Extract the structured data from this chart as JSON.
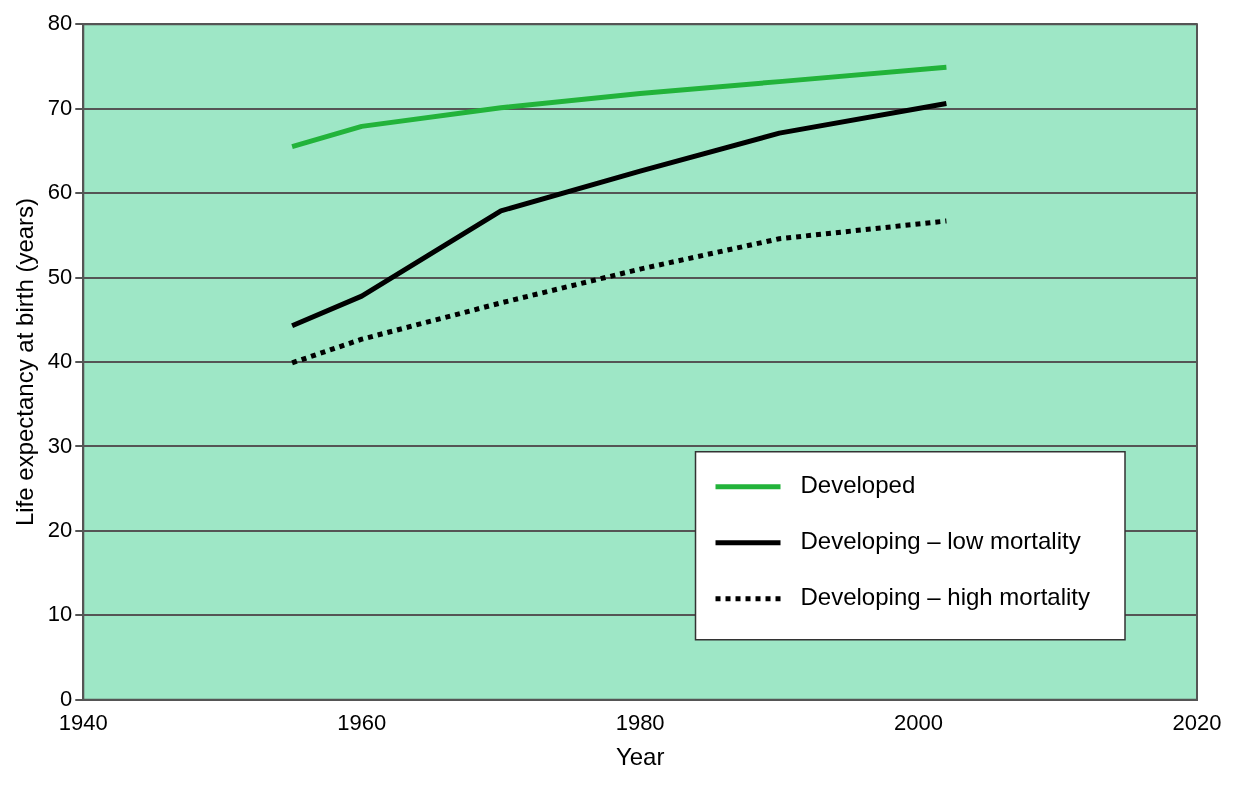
{
  "chart_data": {
    "type": "line",
    "xlabel": "Year",
    "ylabel": "Life expectancy at birth (years)",
    "x": [
      1955,
      1960,
      1970,
      1980,
      1990,
      2002
    ],
    "series": [
      {
        "name": "Developed",
        "color": "#22b33a",
        "values": [
          65.5,
          67.9,
          70.1,
          71.8,
          73.2,
          74.9
        ],
        "line_style": "solid"
      },
      {
        "name": "Developing – low mortality",
        "color": "#000000",
        "values": [
          44.3,
          47.8,
          57.9,
          62.6,
          67.1,
          70.6
        ],
        "line_style": "solid"
      },
      {
        "name": "Developing – high mortality",
        "color": "#000000",
        "values": [
          39.9,
          42.7,
          47,
          51,
          54.6,
          56.7
        ],
        "line_style": "dotted"
      }
    ],
    "xlim": [
      1940,
      2020
    ],
    "xticks": [
      1940,
      1960,
      1980,
      2000,
      2020
    ],
    "ylim": [
      0,
      80
    ],
    "yticks": [
      0,
      10,
      20,
      30,
      40,
      50,
      60,
      70,
      80
    ],
    "grid": "y",
    "legend": "bottom right",
    "marker": "none"
  }
}
